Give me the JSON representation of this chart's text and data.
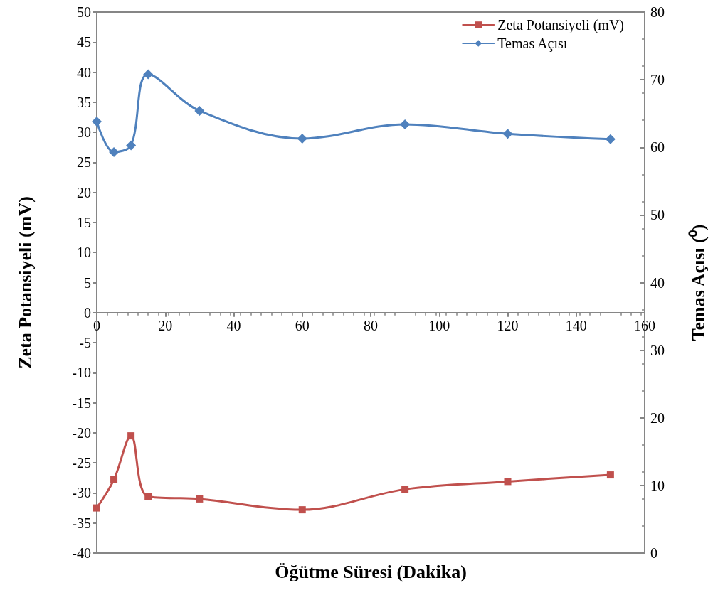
{
  "chart_data": {
    "type": "line",
    "xlabel": "Öğütme Süresi (Dakika)",
    "ylabel": "Zeta Potansiyeli (mV)",
    "y2label": "Temas Açısı (⁰)",
    "x": [
      0,
      5,
      10,
      15,
      30,
      60,
      90,
      120,
      150
    ],
    "series": [
      {
        "name": "Zeta Potansiyeli (mV)",
        "color": "#c0504d",
        "marker": "square",
        "values": [
          -32.5,
          -27.8,
          -20.5,
          -30.6,
          -31.0,
          -32.8,
          -29.4,
          -28.1,
          -27.0
        ]
      },
      {
        "name": "Temas Açısı",
        "color": "#4f81bd",
        "marker": "diamond",
        "axis": "y2",
        "values": [
          63.8,
          59.3,
          60.3,
          70.8,
          65.4,
          61.3,
          63.4,
          62.0,
          61.2
        ]
      }
    ],
    "xlim": [
      0,
      160
    ],
    "xticks": [
      0,
      20,
      40,
      60,
      80,
      100,
      120,
      140,
      160
    ],
    "ylim": [
      -40,
      50
    ],
    "yticks": [
      -40,
      -35,
      -30,
      -25,
      -20,
      -15,
      -10,
      -5,
      0,
      5,
      10,
      15,
      20,
      25,
      30,
      35,
      40,
      45,
      50
    ],
    "y2lim": [
      0,
      80
    ],
    "y2ticks": [
      0,
      10,
      20,
      30,
      40,
      50,
      60,
      70,
      80
    ],
    "grid": false,
    "legend": "top right"
  }
}
